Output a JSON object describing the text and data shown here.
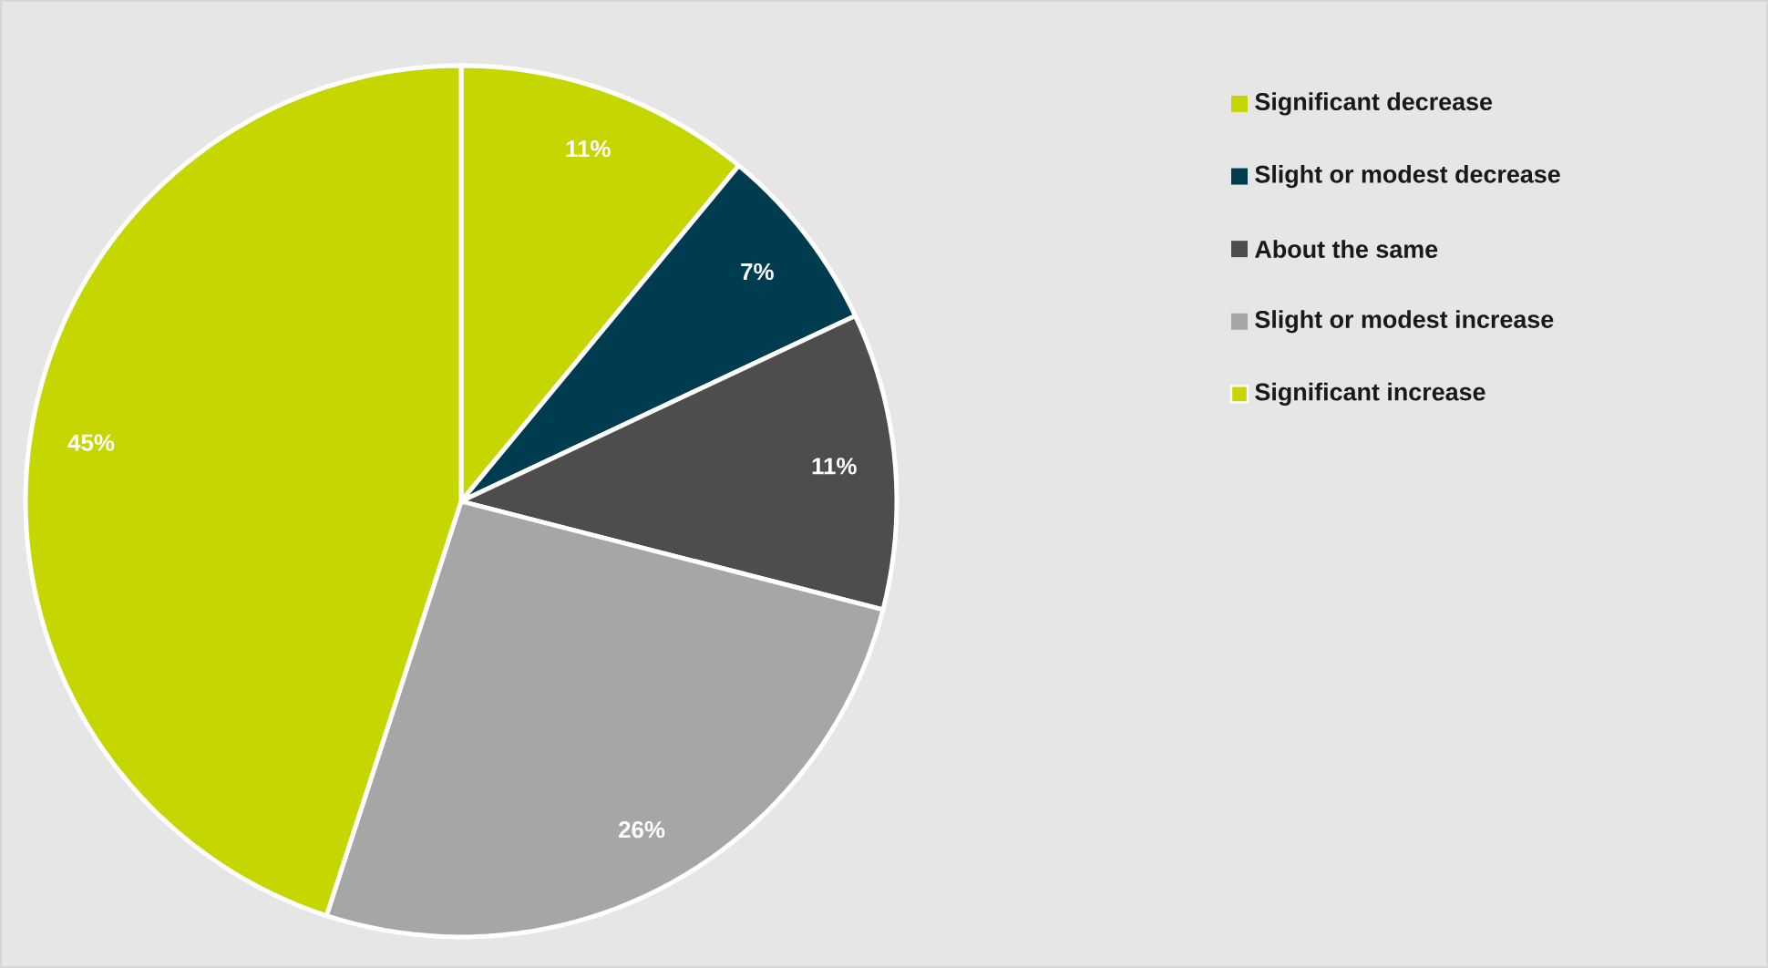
{
  "chart_data": {
    "type": "pie",
    "categories": [
      "Significant decrease",
      "Slight or modest decrease",
      "About the same",
      "Slight or modest increase",
      "Significant increase"
    ],
    "values": [
      11,
      7,
      11,
      26,
      45
    ],
    "value_labels": [
      "11%",
      "7%",
      "11%",
      "26%",
      "45%"
    ],
    "colors": [
      "#c5d600",
      "#003c50",
      "#4d4d4d",
      "#a6a6a6",
      "#c5d600"
    ],
    "legend": "top right"
  }
}
